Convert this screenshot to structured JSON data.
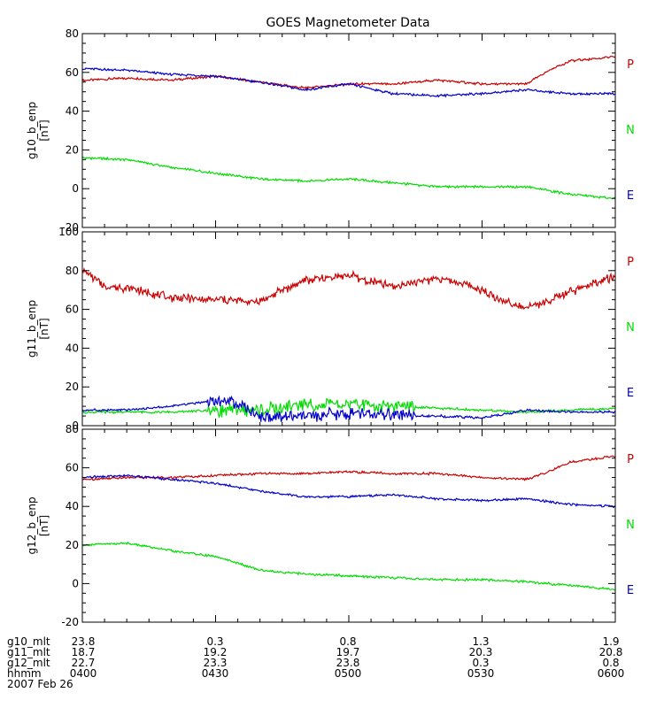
{
  "title": "GOES Magnetometer Data",
  "colors": {
    "P": "#cc0000",
    "N": "#00dd00",
    "E": "#0000cc",
    "axis": "#000000"
  },
  "chart_data": [
    {
      "type": "line",
      "ylabel": "g10_b_enp",
      "unit": "[nT]",
      "ylim": [
        -20,
        80
      ],
      "yticks": [
        -20,
        0,
        20,
        40,
        60,
        80
      ],
      "xlim": [
        0,
        120
      ],
      "legend": [
        "P",
        "N",
        "E"
      ],
      "series": [
        {
          "name": "P",
          "x": [
            0,
            10,
            20,
            30,
            40,
            50,
            60,
            70,
            80,
            90,
            100,
            105,
            110,
            120
          ],
          "values": [
            56,
            57,
            56,
            58,
            55,
            52,
            54,
            54,
            56,
            54,
            54,
            61,
            66,
            68
          ]
        },
        {
          "name": "N",
          "x": [
            0,
            10,
            20,
            30,
            40,
            50,
            60,
            70,
            80,
            90,
            100,
            110,
            120
          ],
          "values": [
            16,
            15,
            11,
            8,
            5,
            4,
            5,
            3,
            1,
            1,
            1,
            -3,
            -5
          ]
        },
        {
          "name": "E",
          "x": [
            0,
            10,
            20,
            30,
            40,
            50,
            60,
            70,
            80,
            90,
            100,
            110,
            120
          ],
          "values": [
            62,
            61,
            59,
            58,
            55,
            51,
            54,
            49,
            48,
            49,
            51,
            49,
            49
          ]
        }
      ]
    },
    {
      "type": "line",
      "ylabel": "g11_b_enp",
      "unit": "[nT]",
      "ylim": [
        0,
        100
      ],
      "yticks": [
        0,
        20,
        40,
        60,
        80,
        100
      ],
      "xlim": [
        0,
        120
      ],
      "legend": [
        "P",
        "N",
        "E"
      ],
      "series": [
        {
          "name": "P",
          "x": [
            0,
            5,
            10,
            20,
            30,
            40,
            45,
            50,
            55,
            60,
            65,
            70,
            80,
            88,
            95,
            100,
            105,
            110,
            120
          ],
          "values": [
            81,
            72,
            71,
            66,
            65,
            64,
            70,
            75,
            76,
            78,
            74,
            72,
            76,
            72,
            64,
            61,
            64,
            69,
            77
          ]
        },
        {
          "name": "N",
          "x": [
            0,
            10,
            20,
            30,
            40,
            50,
            60,
            70,
            80,
            90,
            100,
            110,
            120
          ],
          "values": [
            7,
            7,
            7,
            8,
            8,
            11,
            11,
            10,
            9,
            8,
            7,
            8,
            9
          ]
        },
        {
          "name": "E",
          "x": [
            0,
            10,
            20,
            30,
            35,
            40,
            45,
            50,
            60,
            70,
            80,
            90,
            100,
            110,
            120
          ],
          "values": [
            8,
            8,
            10,
            13,
            12,
            5,
            4,
            5,
            6,
            5,
            5,
            4,
            8,
            7,
            7
          ]
        }
      ]
    },
    {
      "type": "line",
      "ylabel": "g12_b_enp",
      "unit": "[nT]",
      "ylim": [
        -20,
        80
      ],
      "yticks": [
        -20,
        0,
        20,
        40,
        60,
        80
      ],
      "xlim": [
        0,
        120
      ],
      "legend": [
        "P",
        "N",
        "E"
      ],
      "series": [
        {
          "name": "P",
          "x": [
            0,
            10,
            20,
            30,
            40,
            50,
            60,
            70,
            80,
            90,
            100,
            105,
            110,
            120
          ],
          "values": [
            54,
            55,
            55,
            56,
            57,
            57,
            58,
            57,
            57,
            55,
            54,
            58,
            63,
            66
          ]
        },
        {
          "name": "N",
          "x": [
            0,
            10,
            20,
            30,
            40,
            50,
            60,
            70,
            80,
            90,
            100,
            110,
            120
          ],
          "values": [
            20,
            21,
            17,
            14,
            7,
            5,
            4,
            3,
            2,
            2,
            1,
            -1,
            -3
          ]
        },
        {
          "name": "E",
          "x": [
            0,
            10,
            20,
            30,
            40,
            50,
            60,
            70,
            80,
            90,
            100,
            110,
            120
          ],
          "values": [
            55,
            56,
            54,
            52,
            48,
            45,
            45,
            46,
            44,
            43,
            44,
            41,
            40
          ]
        }
      ]
    }
  ],
  "xaxis": {
    "major_ticks": [
      0,
      30,
      60,
      90,
      120
    ],
    "minor_ticks": [
      5,
      10,
      15,
      20,
      25,
      35,
      40,
      45,
      50,
      55,
      65,
      70,
      75,
      80,
      85,
      95,
      100,
      105,
      110,
      115
    ],
    "rows": [
      {
        "label": "g10_mlt",
        "values": [
          "23.8",
          "0.3",
          "0.8",
          "1.3",
          "1.9"
        ]
      },
      {
        "label": "g11_mlt",
        "values": [
          "18.7",
          "19.2",
          "19.7",
          "20.3",
          "20.8"
        ]
      },
      {
        "label": "g12_mlt",
        "values": [
          "22.7",
          "23.3",
          "23.8",
          "0.3",
          "0.8"
        ]
      },
      {
        "label": "hhmm",
        "values": [
          "0400",
          "0430",
          "0500",
          "0530",
          "0600"
        ]
      }
    ],
    "date": "2007 Feb 26"
  }
}
